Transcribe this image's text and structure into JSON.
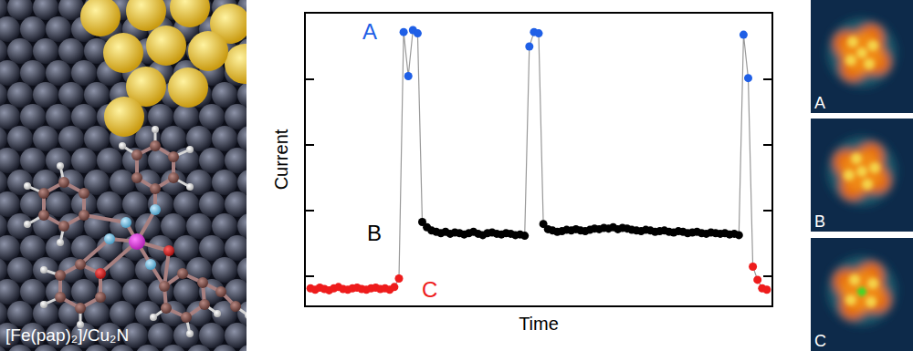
{
  "chart_data": {
    "type": "scatter",
    "xlabel": "Time",
    "ylabel": "Current",
    "xlim": [
      0,
      100
    ],
    "ylim": [
      0.56,
      5
    ],
    "xticks": [],
    "yticks": [
      1,
      2,
      3,
      4
    ],
    "tick_labels": false,
    "grid": false,
    "x": [
      1,
      2,
      3,
      4,
      5,
      6,
      7,
      8,
      9,
      10,
      11,
      12,
      13,
      14,
      15,
      16,
      17,
      18,
      19,
      20,
      21,
      22,
      23,
      24,
      25,
      26,
      27,
      28,
      29,
      30,
      31,
      32,
      33,
      34,
      35,
      36,
      37,
      38,
      39,
      40,
      41,
      42,
      43,
      44,
      45,
      46,
      47,
      48,
      49,
      50,
      51,
      52,
      53,
      54,
      55,
      56,
      57,
      58,
      59,
      60,
      61,
      62,
      63,
      64,
      65,
      66,
      67,
      68,
      69,
      70,
      71,
      72,
      73,
      74,
      75,
      76,
      77,
      78,
      79,
      80,
      81,
      82,
      83,
      84,
      85,
      86,
      87,
      88,
      89,
      90,
      91,
      92,
      93,
      94,
      95,
      96,
      97,
      98,
      99
    ],
    "series": [
      {
        "name": "A",
        "color": "#1f5fe6",
        "marker": "circle",
        "values": [
          null,
          null,
          null,
          null,
          null,
          null,
          null,
          null,
          null,
          null,
          null,
          null,
          null,
          null,
          null,
          null,
          null,
          null,
          null,
          null,
          4.72,
          4.05,
          4.75,
          4.7,
          null,
          null,
          null,
          null,
          null,
          null,
          null,
          null,
          null,
          null,
          null,
          null,
          null,
          null,
          null,
          null,
          null,
          null,
          null,
          null,
          null,
          null,
          null,
          4.5,
          4.72,
          4.7,
          null,
          null,
          null,
          null,
          null,
          null,
          null,
          null,
          null,
          null,
          null,
          null,
          null,
          null,
          null,
          null,
          null,
          null,
          null,
          null,
          null,
          null,
          null,
          null,
          null,
          null,
          null,
          null,
          null,
          null,
          null,
          null,
          null,
          null,
          null,
          null,
          null,
          null,
          null,
          null,
          null,
          null,
          null,
          4.68,
          4.02,
          null,
          null,
          null,
          null
        ]
      },
      {
        "name": "B",
        "color": "#000000",
        "marker": "circle",
        "values": [
          null,
          null,
          null,
          null,
          null,
          null,
          null,
          null,
          null,
          null,
          null,
          null,
          null,
          null,
          null,
          null,
          null,
          null,
          null,
          null,
          null,
          null,
          null,
          null,
          1.83,
          1.75,
          1.7,
          1.68,
          1.66,
          1.68,
          1.65,
          1.67,
          1.66,
          1.64,
          1.66,
          1.68,
          1.65,
          1.63,
          1.66,
          1.67,
          1.65,
          1.64,
          1.66,
          1.65,
          1.63,
          1.64,
          1.62,
          null,
          null,
          null,
          1.8,
          1.72,
          1.7,
          1.68,
          1.69,
          1.71,
          1.7,
          1.72,
          1.7,
          1.69,
          1.71,
          1.73,
          1.72,
          1.74,
          1.73,
          1.75,
          1.72,
          1.74,
          1.73,
          1.71,
          1.7,
          1.69,
          1.71,
          1.7,
          1.68,
          1.69,
          1.7,
          1.68,
          1.67,
          1.69,
          1.68,
          1.66,
          1.67,
          1.68,
          1.66,
          1.65,
          1.67,
          1.66,
          1.65,
          1.66,
          1.64,
          1.65,
          1.63,
          null,
          null,
          null,
          null,
          null,
          null
        ]
      },
      {
        "name": "C",
        "color": "#ee1c1c",
        "marker": "circle",
        "values": [
          0.82,
          0.8,
          0.83,
          0.81,
          0.79,
          0.82,
          0.84,
          0.81,
          0.8,
          0.82,
          0.83,
          0.81,
          0.8,
          0.82,
          0.83,
          0.81,
          0.82,
          0.8,
          0.84,
          0.97,
          null,
          null,
          null,
          null,
          null,
          null,
          null,
          null,
          null,
          null,
          null,
          null,
          null,
          null,
          null,
          null,
          null,
          null,
          null,
          null,
          null,
          null,
          null,
          null,
          null,
          null,
          null,
          null,
          null,
          null,
          null,
          null,
          null,
          null,
          null,
          null,
          null,
          null,
          null,
          null,
          null,
          null,
          null,
          null,
          null,
          null,
          null,
          null,
          null,
          null,
          null,
          null,
          null,
          null,
          null,
          null,
          null,
          null,
          null,
          null,
          null,
          null,
          null,
          null,
          null,
          null,
          null,
          null,
          null,
          null,
          null,
          null,
          null,
          null,
          null,
          1.15,
          0.95,
          0.82,
          0.8
        ]
      }
    ]
  },
  "left_panel": {
    "label": "[Fe(pap)₂]/Cu₂N"
  },
  "right_panels": [
    {
      "label": "A"
    },
    {
      "label": "B"
    },
    {
      "label": "C"
    }
  ]
}
